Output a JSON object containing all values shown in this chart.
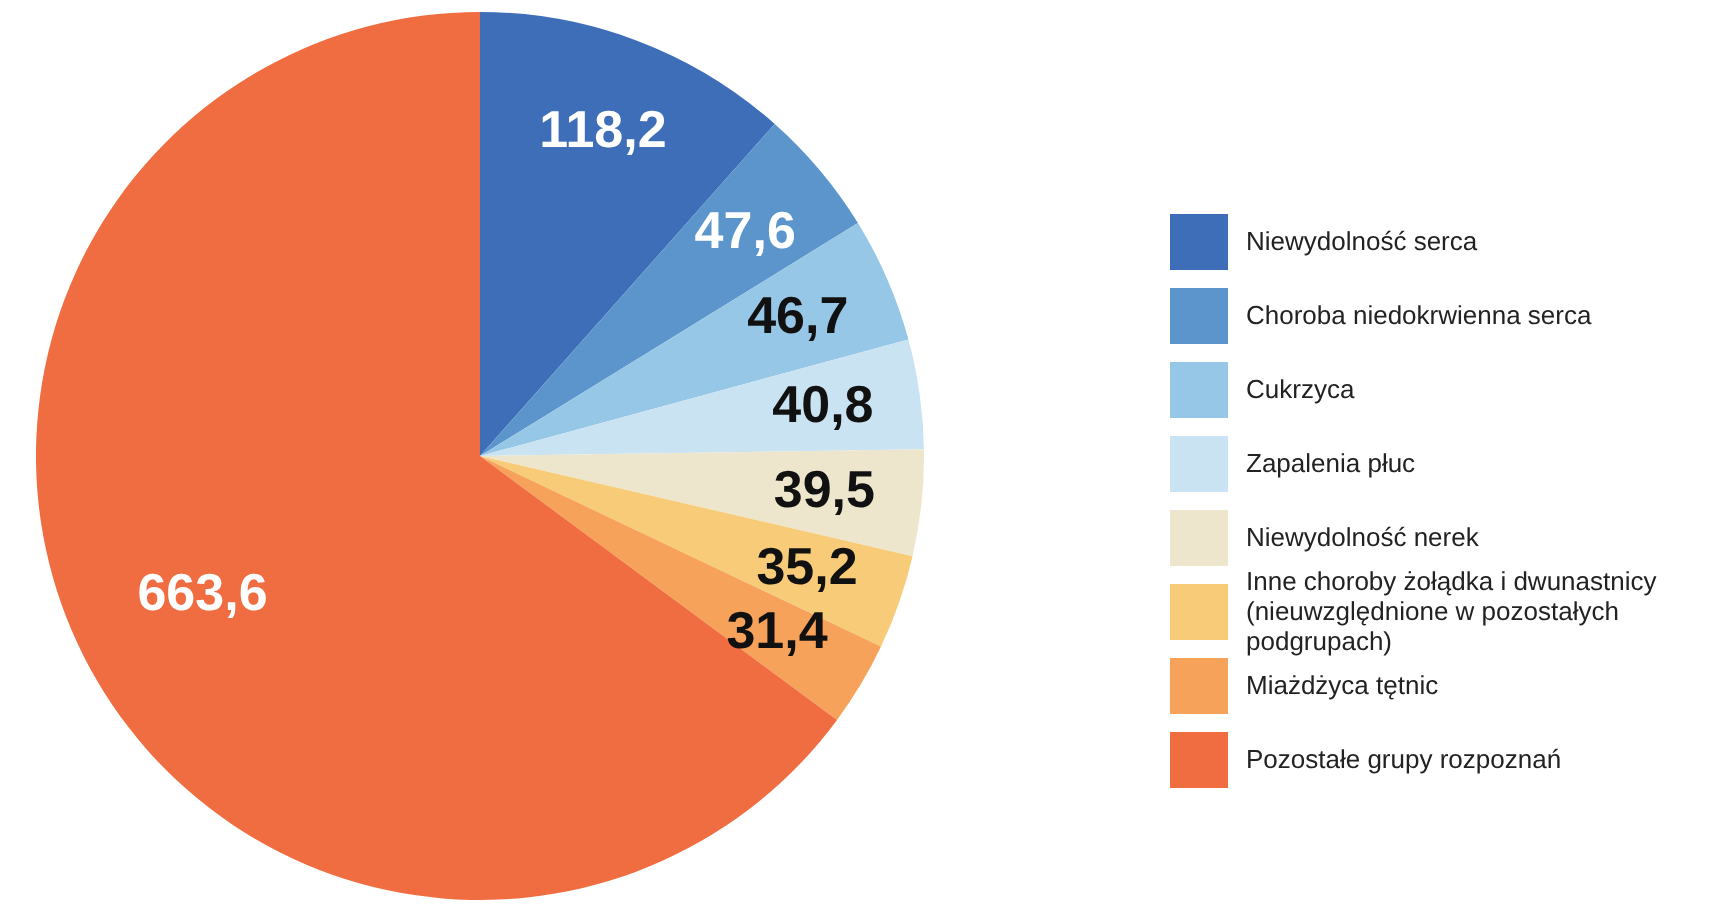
{
  "chart_data": {
    "type": "pie",
    "categories": [
      "Niewydolność serca",
      "Choroba niedokrwienna serca",
      "Cukrzyca",
      "Zapalenia płuc",
      "Niewydolność nerek",
      "Inne choroby żołądka i dwunastnicy (nieuwzględnione w pozostałych podgrupach)",
      "Miażdżyca tętnic",
      "Pozostałe grupy rozpoznań"
    ],
    "values": [
      118.2,
      47.6,
      46.7,
      40.8,
      39.5,
      35.2,
      31.4,
      663.6
    ],
    "colors": [
      "#3f6eb8",
      "#5b95cc",
      "#97c7e6",
      "#c9e3f3",
      "#ede6cc",
      "#f8cb78",
      "#f7a25a",
      "#f06c41"
    ],
    "value_labels": [
      "118,2",
      "47,6",
      "46,7",
      "40,8",
      "39,5",
      "35,2",
      "31,4",
      "663,6"
    ],
    "legend": "right"
  }
}
